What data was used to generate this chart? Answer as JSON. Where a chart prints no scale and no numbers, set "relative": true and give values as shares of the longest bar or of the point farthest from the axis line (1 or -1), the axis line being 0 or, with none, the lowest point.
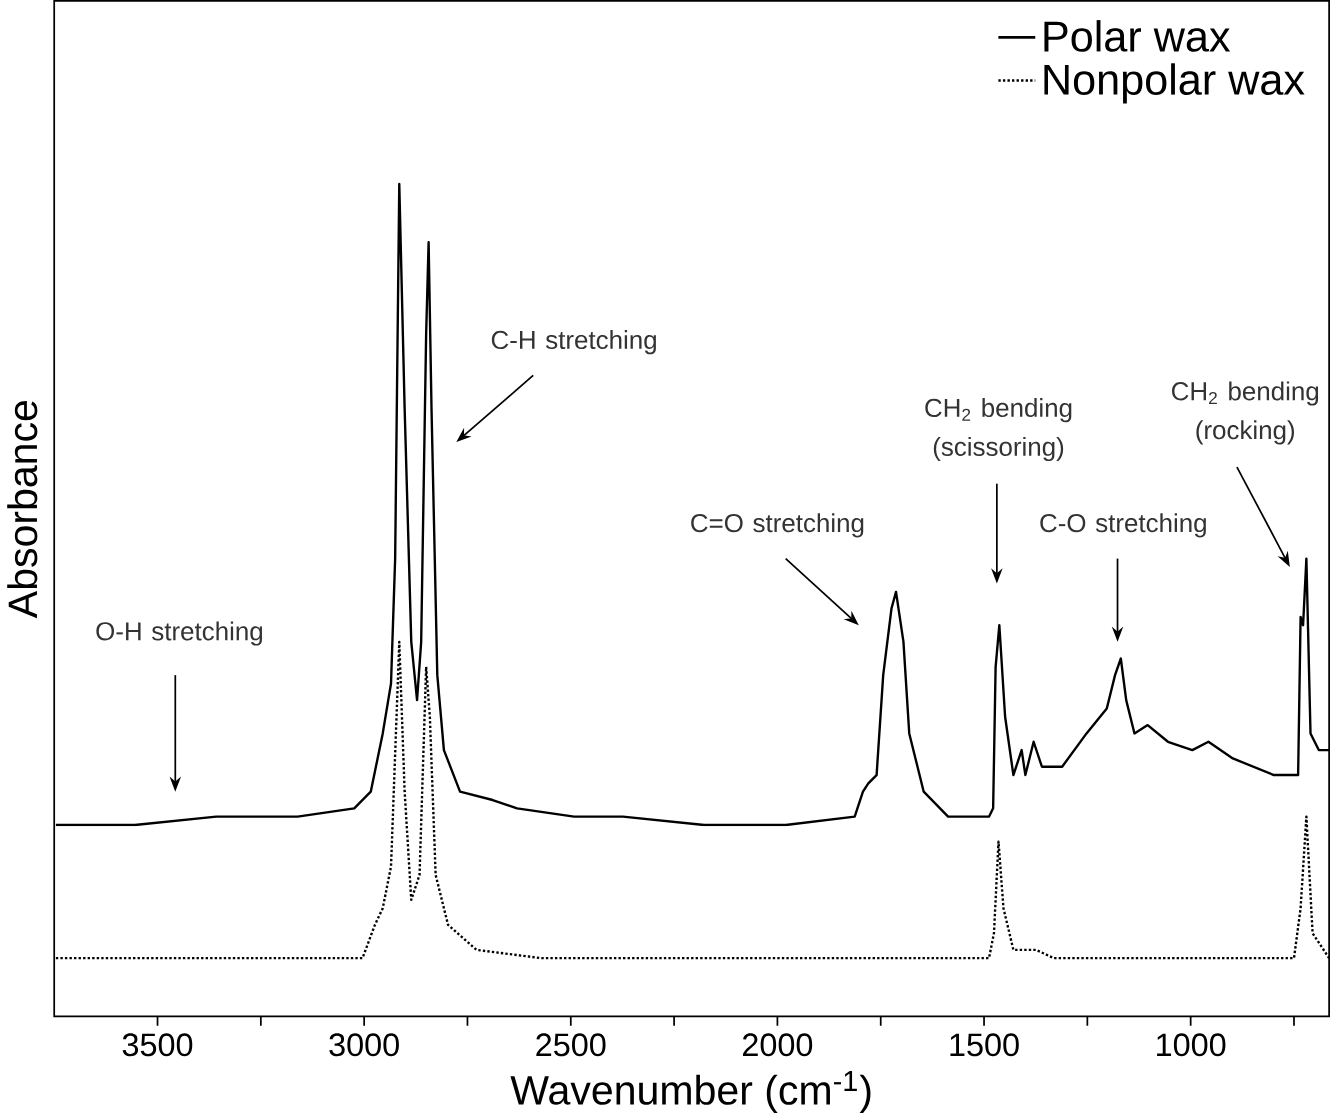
{
  "chart_data": {
    "type": "line",
    "relative": true,
    "xlabel": "Wavenumber (cm$^{-1}$)",
    "ylabel": "Absorbance",
    "tick_labels": "x",
    "legend": "top right",
    "xlim": [
      3750,
      665
    ],
    "xticks": [
      3500,
      {
        "value": 3250,
        "label": null
      },
      3000,
      {
        "value": 2750,
        "label": null
      },
      2500,
      {
        "value": 2250,
        "label": null
      },
      2000,
      {
        "value": 1750,
        "label": null
      },
      1500,
      {
        "value": 1250,
        "label": null
      },
      1000,
      {
        "value": 750,
        "label": null
      }
    ],
    "series": [
      {
        "name": "Polar wax",
        "color": "#000000",
        "line_style": "solid",
        "x": [
          3746,
          3555,
          3358,
          3161,
          3024,
          2984,
          2955,
          2935,
          2925,
          2915,
          2902,
          2886,
          2872,
          2862,
          2850,
          2844,
          2837,
          2823,
          2807,
          2768,
          2689,
          2630,
          2492,
          2374,
          2177,
          1980,
          1813,
          1793,
          1780,
          1760,
          1744,
          1724,
          1713,
          1695,
          1681,
          1646,
          1587,
          1488,
          1478,
          1472,
          1463,
          1449,
          1429,
          1409,
          1400,
          1380,
          1360,
          1311,
          1252,
          1203,
          1183,
          1169,
          1156,
          1136,
          1104,
          1055,
          996,
          957,
          898,
          799,
          740,
          734,
          728,
          720,
          710,
          690,
          665
        ],
        "values": [
          0.23,
          0.23,
          0.24,
          0.24,
          0.25,
          0.27,
          0.34,
          0.4,
          0.55,
          1.0,
          0.73,
          0.45,
          0.38,
          0.45,
          0.82,
          0.93,
          0.73,
          0.41,
          0.32,
          0.27,
          0.26,
          0.25,
          0.24,
          0.24,
          0.23,
          0.23,
          0.24,
          0.27,
          0.28,
          0.29,
          0.41,
          0.49,
          0.51,
          0.45,
          0.34,
          0.27,
          0.24,
          0.24,
          0.25,
          0.42,
          0.47,
          0.36,
          0.29,
          0.32,
          0.29,
          0.33,
          0.3,
          0.3,
          0.34,
          0.37,
          0.41,
          0.43,
          0.38,
          0.34,
          0.35,
          0.33,
          0.32,
          0.33,
          0.31,
          0.29,
          0.29,
          0.48,
          0.47,
          0.55,
          0.34,
          0.32,
          0.32
        ]
      },
      {
        "name": "Nonpolar wax",
        "color": "#000000",
        "line_style": "dotted",
        "x": [
          3746,
          3004,
          2974,
          2955,
          2935,
          2915,
          2902,
          2886,
          2866,
          2850,
          2841,
          2827,
          2797,
          2728,
          2571,
          1980,
          1488,
          1476,
          1465,
          1453,
          1429,
          1374,
          1331,
          750,
          734,
          720,
          705,
          665
        ],
        "values": [
          0.07,
          0.07,
          0.11,
          0.13,
          0.18,
          0.45,
          0.27,
          0.14,
          0.17,
          0.42,
          0.36,
          0.17,
          0.11,
          0.08,
          0.07,
          0.07,
          0.07,
          0.1,
          0.21,
          0.13,
          0.08,
          0.08,
          0.07,
          0.07,
          0.13,
          0.24,
          0.1,
          0.07
        ]
      }
    ],
    "annotations": [
      "O-H stretching",
      "C-H stretching",
      "C=O stretching",
      "CH$_{2}$ bending (scissoring)",
      "C-O stretching",
      "CH$_{2}$ bending (rocking)"
    ]
  }
}
